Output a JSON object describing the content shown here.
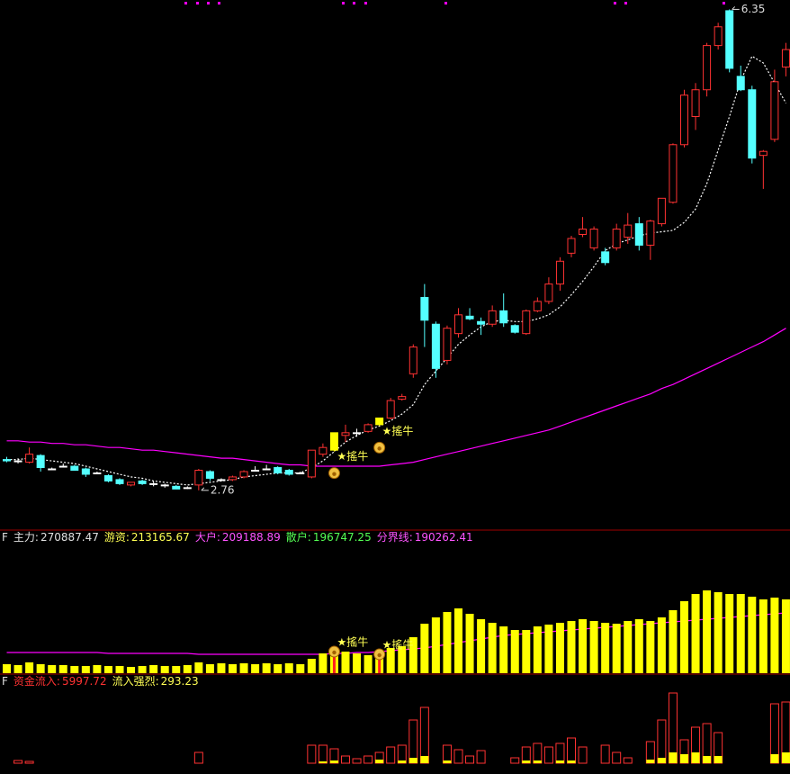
{
  "chart_data": [
    {
      "type": "candlestick",
      "ylim": [
        2.47,
        6.42
      ],
      "open": [
        2.99,
        2.98,
        2.97,
        3.02,
        2.92,
        2.94,
        2.94,
        2.92,
        2.89,
        2.87,
        2.84,
        2.8,
        2.83,
        2.81,
        2.8,
        2.79,
        2.78,
        2.8,
        2.9,
        2.84,
        2.84,
        2.86,
        2.91,
        2.92,
        2.93,
        2.91,
        2.89,
        2.86,
        3.03,
        3.06,
        3.17,
        3.19,
        3.2,
        3.25,
        3.3,
        3.44,
        3.63,
        4.2,
        4.0,
        3.73,
        3.93,
        4.06,
        4.02,
        4.0,
        4.1,
        3.99,
        3.93,
        4.1,
        4.17,
        4.3,
        4.53,
        4.67,
        4.57,
        4.54,
        4.57,
        4.65,
        4.75,
        4.59,
        4.75,
        4.91,
        5.34,
        5.55,
        5.75,
        6.08,
        6.34,
        5.85,
        5.75,
        5.26,
        5.38,
        5.92
      ],
      "high": [
        3.01,
        3.0,
        3.08,
        3.03,
        2.93,
        2.96,
        2.95,
        2.93,
        2.9,
        2.88,
        2.85,
        2.82,
        2.84,
        2.83,
        2.81,
        2.8,
        2.79,
        2.92,
        2.91,
        2.85,
        2.87,
        2.91,
        2.94,
        2.95,
        2.94,
        2.92,
        2.9,
        3.06,
        3.11,
        3.19,
        3.25,
        3.22,
        3.26,
        3.3,
        3.45,
        3.48,
        3.85,
        4.3,
        4.02,
        3.99,
        4.12,
        4.12,
        4.05,
        4.14,
        4.23,
        4.0,
        4.11,
        4.2,
        4.35,
        4.5,
        4.66,
        4.8,
        4.73,
        4.57,
        4.75,
        4.83,
        4.8,
        4.78,
        4.94,
        5.35,
        5.75,
        5.8,
        6.1,
        6.25,
        6.35,
        5.93,
        5.78,
        5.3,
        5.9,
        6.1
      ],
      "low": [
        2.97,
        2.96,
        2.96,
        2.9,
        2.91,
        2.93,
        2.91,
        2.86,
        2.88,
        2.82,
        2.8,
        2.79,
        2.8,
        2.79,
        2.78,
        2.77,
        2.77,
        2.76,
        2.83,
        2.83,
        2.83,
        2.85,
        2.9,
        2.91,
        2.88,
        2.87,
        2.88,
        2.85,
        3.01,
        3.05,
        3.12,
        3.16,
        3.19,
        3.24,
        3.29,
        3.43,
        3.6,
        3.83,
        3.6,
        3.7,
        3.9,
        4.03,
        3.92,
        3.98,
        3.98,
        3.93,
        3.92,
        4.09,
        4.15,
        4.25,
        4.5,
        4.65,
        4.55,
        4.44,
        4.55,
        4.6,
        4.55,
        4.48,
        4.73,
        4.9,
        5.32,
        5.45,
        5.7,
        6.05,
        5.88,
        5.74,
        5.2,
        5.01,
        5.36,
        5.85
      ],
      "close": [
        2.98,
        2.98,
        3.03,
        2.93,
        2.92,
        2.94,
        2.91,
        2.88,
        2.89,
        2.83,
        2.81,
        2.82,
        2.81,
        2.81,
        2.8,
        2.77,
        2.78,
        2.91,
        2.85,
        2.84,
        2.86,
        2.9,
        2.91,
        2.92,
        2.89,
        2.88,
        2.89,
        3.06,
        3.08,
        3.19,
        3.19,
        3.19,
        3.25,
        3.3,
        3.43,
        3.46,
        3.83,
        4.03,
        3.67,
        3.97,
        4.07,
        4.04,
        4.0,
        4.1,
        4.01,
        3.94,
        4.1,
        4.17,
        4.3,
        4.47,
        4.64,
        4.71,
        4.71,
        4.46,
        4.71,
        4.74,
        4.59,
        4.77,
        4.94,
        5.34,
        5.71,
        5.75,
        6.08,
        6.22,
        5.91,
        5.75,
        5.24,
        5.29,
        5.81,
        6.05
      ],
      "up_color": "#ff3232",
      "down_color": "#54ffff",
      "flat_color": "#ffffff",
      "highlight": [
        29,
        33
      ],
      "highlight_color": "#ffff00",
      "lines": [
        {
          "color": "#ffffff",
          "dash": true,
          "values": [
            2.99,
            2.99,
            3.0,
            2.99,
            2.98,
            2.97,
            2.96,
            2.94,
            2.92,
            2.9,
            2.88,
            2.86,
            2.85,
            2.83,
            2.82,
            2.81,
            2.8,
            2.81,
            2.82,
            2.83,
            2.84,
            2.86,
            2.87,
            2.88,
            2.89,
            2.89,
            2.89,
            2.93,
            2.98,
            3.05,
            3.12,
            3.17,
            3.21,
            3.24,
            3.28,
            3.33,
            3.4,
            3.55,
            3.65,
            3.75,
            3.85,
            3.92,
            3.98,
            4.02,
            4.03,
            4.02,
            4.02,
            4.04,
            4.07,
            4.13,
            4.22,
            4.32,
            4.43,
            4.55,
            4.6,
            4.63,
            4.66,
            4.68,
            4.69,
            4.7,
            4.76,
            4.86,
            5.05,
            5.3,
            5.55,
            5.82,
            6.0,
            5.95,
            5.8,
            5.65
          ]
        },
        {
          "color": "#ff00ff",
          "dash": false,
          "values": [
            3.13,
            3.13,
            3.12,
            3.12,
            3.11,
            3.11,
            3.1,
            3.1,
            3.09,
            3.08,
            3.08,
            3.07,
            3.06,
            3.06,
            3.05,
            3.04,
            3.03,
            3.02,
            3.01,
            3.0,
            3.0,
            2.99,
            2.98,
            2.97,
            2.96,
            2.95,
            2.95,
            2.94,
            2.94,
            2.94,
            2.94,
            2.94,
            2.94,
            2.94,
            2.95,
            2.96,
            2.97,
            2.99,
            3.01,
            3.03,
            3.05,
            3.07,
            3.09,
            3.11,
            3.13,
            3.15,
            3.17,
            3.19,
            3.21,
            3.24,
            3.27,
            3.3,
            3.33,
            3.36,
            3.39,
            3.42,
            3.45,
            3.48,
            3.52,
            3.55,
            3.59,
            3.63,
            3.67,
            3.71,
            3.75,
            3.79,
            3.83,
            3.87,
            3.92,
            3.97
          ]
        }
      ],
      "annotations": [
        {
          "index": 64,
          "value": 6.35
        },
        {
          "index": 17,
          "value": 2.76
        }
      ],
      "signals": [
        {
          "index": 29,
          "label": "★搖牛"
        },
        {
          "index": 33,
          "label": "★搖牛"
        }
      ]
    },
    {
      "type": "bar",
      "prefix": "F",
      "header": [
        {
          "name": "主力:",
          "value": 270887.47,
          "color": "#e0e0e0"
        },
        {
          "name": "游资:",
          "value": 213165.67,
          "color": "#ffff54"
        },
        {
          "name": "大户:",
          "value": 209188.89,
          "color": "#ff54ff"
        },
        {
          "name": "散户:",
          "value": 196747.25,
          "color": "#54ff54"
        },
        {
          "name": "分界线:",
          "value": 190262.41,
          "color": "#ff54ff"
        }
      ],
      "ylim": [
        0,
        158
      ],
      "values": [
        10,
        9,
        12,
        10,
        9,
        9,
        8,
        8,
        9,
        8,
        8,
        7,
        8,
        9,
        8,
        8,
        9,
        12,
        10,
        11,
        10,
        11,
        10,
        11,
        10,
        11,
        10,
        16,
        22,
        28,
        24,
        22,
        20,
        25,
        28,
        30,
        40,
        55,
        62,
        68,
        72,
        66,
        60,
        56,
        52,
        48,
        48,
        52,
        54,
        56,
        58,
        60,
        58,
        56,
        55,
        58,
        60,
        58,
        62,
        70,
        80,
        88,
        92,
        90,
        88,
        88,
        85,
        82,
        84,
        82
      ],
      "color": "#ffff00",
      "highlight": [
        29,
        33
      ],
      "highlight_color": "#ff2020",
      "lines": [
        {
          "color": "#ff00ff",
          "dash": false,
          "values": [
            23,
            23,
            23,
            23,
            23,
            23,
            23,
            23,
            23,
            22,
            22,
            22,
            22,
            22,
            22,
            22,
            22,
            21,
            21,
            21,
            21,
            21,
            21,
            21,
            21,
            21,
            21,
            21,
            21,
            22,
            22,
            23,
            23,
            24,
            25,
            26,
            27,
            28,
            30,
            32,
            34,
            36,
            38,
            40,
            42,
            43,
            44,
            45,
            46,
            47,
            48,
            49,
            50,
            51,
            52,
            53,
            54,
            55,
            56,
            57,
            58,
            59,
            60,
            61,
            62,
            63,
            64,
            65,
            66,
            67
          ]
        }
      ],
      "signals": [
        {
          "index": 29,
          "label": "★搖牛"
        },
        {
          "index": 33,
          "label": "★搖牛"
        }
      ]
    },
    {
      "type": "bar",
      "prefix": "F",
      "header": [
        {
          "name": "资金流入:",
          "value": 5997.72,
          "color": "#ff3232"
        },
        {
          "name": "流入强烈:",
          "value": 293.23,
          "color": "#ffff54"
        }
      ],
      "ylim": [
        0,
        78
      ],
      "series": [
        {
          "color": "#ff3232",
          "hollow": true,
          "values": [
            0,
            3,
            2,
            0,
            0,
            0,
            0,
            0,
            0,
            0,
            0,
            0,
            0,
            0,
            0,
            0,
            0,
            12,
            0,
            0,
            0,
            0,
            0,
            0,
            0,
            0,
            0,
            20,
            20,
            16,
            8,
            5,
            8,
            12,
            18,
            20,
            48,
            62,
            0,
            20,
            15,
            8,
            14,
            0,
            0,
            6,
            18,
            22,
            18,
            22,
            28,
            18,
            0,
            20,
            12,
            6,
            0,
            24,
            48,
            78,
            26,
            40,
            44,
            34,
            0,
            0,
            0,
            0,
            66,
            68
          ]
        },
        {
          "color": "#ffff00",
          "hollow": false,
          "values": [
            0,
            0,
            0,
            0,
            0,
            0,
            0,
            0,
            0,
            0,
            0,
            0,
            0,
            0,
            0,
            0,
            0,
            0,
            0,
            0,
            0,
            0,
            0,
            0,
            0,
            0,
            0,
            0,
            2,
            3,
            0,
            0,
            0,
            4,
            0,
            3,
            6,
            8,
            0,
            3,
            0,
            0,
            0,
            0,
            0,
            0,
            3,
            3,
            0,
            3,
            3,
            0,
            0,
            0,
            0,
            0,
            0,
            4,
            6,
            12,
            10,
            12,
            8,
            8,
            0,
            0,
            0,
            0,
            10,
            12
          ]
        }
      ]
    }
  ]
}
